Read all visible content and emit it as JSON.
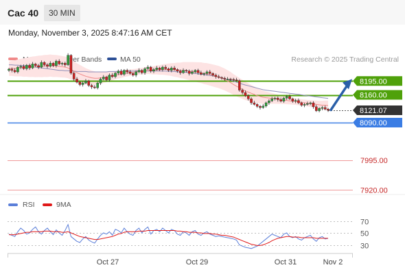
{
  "header": {
    "instrument": "Cac 40",
    "timeframe": "30 MIN"
  },
  "datetime": "Monday, November 3, 2025 8:47:16 AM CET",
  "legend": {
    "ma20": "MA 20 + Bollinger Bands",
    "ma50": "MA 50",
    "credit": "Research © 2025 Trading Central",
    "rsi": "RSI",
    "rsi_ma": "9MA"
  },
  "colors": {
    "candle_up": "#2e9e3a",
    "candle_down": "#cc1f1f",
    "ma20": "#f08a8a",
    "bollinger_fill": "#fde3e3",
    "ma50": "#8e8eb8",
    "resistance": "#4fa10a",
    "pivot": "#3b7de4",
    "support": "#ef9a9a",
    "arrow": "#2a5fa8",
    "rsi": "#5b7fd9",
    "rsi_ma": "#e01919"
  },
  "chart_data": [
    {
      "type": "candlestick",
      "price_levels": [
        {
          "label": "8195.00",
          "value": 8195.0,
          "role": "resistance"
        },
        {
          "label": "8160.00",
          "value": 8160.0,
          "role": "resistance"
        },
        {
          "label": "8121.07",
          "value": 8121.07,
          "role": "last"
        },
        {
          "label": "8090.00",
          "value": 8090.0,
          "role": "pivot"
        },
        {
          "label": "7995.00",
          "value": 7995.0,
          "role": "support"
        },
        {
          "label": "7920.00",
          "value": 7920.0,
          "role": "support"
        }
      ],
      "x_ticks": [
        "Oct 27",
        "Oct 29",
        "Oct 31",
        "Nov 2"
      ],
      "close": [
        8225,
        8222,
        8218,
        8230,
        8232,
        8226,
        8235,
        8228,
        8238,
        8234,
        8230,
        8242,
        8236,
        8232,
        8240,
        8234,
        8245,
        8238,
        8240,
        8236,
        8260,
        8215,
        8200,
        8192,
        8186,
        8190,
        8195,
        8184,
        8180,
        8178,
        8190,
        8200,
        8205,
        8198,
        8210,
        8206,
        8215,
        8220,
        8212,
        8222,
        8218,
        8214,
        8210,
        8218,
        8222,
        8216,
        8226,
        8230,
        8220,
        8224,
        8228,
        8224,
        8230,
        8226,
        8222,
        8228,
        8224,
        8220,
        8216,
        8222,
        8220,
        8214,
        8218,
        8222,
        8216,
        8212,
        8214,
        8218,
        8214,
        8210,
        8206,
        8204,
        8202,
        8200,
        8200,
        8199,
        8198,
        8196,
        8172,
        8166,
        8158,
        8150,
        8140,
        8136,
        8131,
        8128,
        8132,
        8140,
        8145,
        8150,
        8152,
        8148,
        8144,
        8152,
        8156,
        8150,
        8144,
        8146,
        8140,
        8134,
        8136,
        8138,
        8140,
        8130,
        8120,
        8126,
        8128,
        8124,
        8121
      ],
      "ma20": [
        8226,
        8227,
        8227,
        8228,
        8229,
        8229,
        8230,
        8230,
        8231,
        8231,
        8232,
        8232,
        8233,
        8233,
        8234,
        8233,
        8233,
        8232,
        8231,
        8230,
        8228,
        8224,
        8220,
        8216,
        8213,
        8210,
        8207,
        8205,
        8203,
        8202,
        8202,
        8203,
        8204,
        8205,
        8207,
        8208,
        8210,
        8211,
        8212,
        8214,
        8215,
        8216,
        8217,
        8218,
        8219,
        8220,
        8221,
        8222,
        8222,
        8222,
        8223,
        8223,
        8224,
        8224,
        8224,
        8224,
        8223,
        8223,
        8222,
        8222,
        8221,
        8220,
        8219,
        8218,
        8217,
        8216,
        8214,
        8213,
        8211,
        8209,
        8207,
        8205,
        8202,
        8199,
        8195,
        8191,
        8186,
        8182,
        8178,
        8174,
        8170,
        8167,
        8164,
        8161,
        8158,
        8156,
        8154,
        8153,
        8152,
        8151,
        8150,
        8149,
        8148,
        8147,
        8146,
        8145,
        8144,
        8143,
        8142,
        8141,
        8140,
        8139,
        8138,
        8137,
        8136,
        8135,
        8134,
        8134,
        8133
      ],
      "ma50": [
        8236,
        8236,
        8235,
        8235,
        8234,
        8234,
        8233,
        8232,
        8231,
        8230,
        8229,
        8228,
        8227,
        8226,
        8225,
        8224,
        8223,
        8222,
        8222,
        8221,
        8221,
        8220,
        8220,
        8219,
        8219,
        8219,
        8219,
        8218,
        8218,
        8218,
        8218,
        8218,
        8218,
        8218,
        8219,
        8219,
        8219,
        8219,
        8219,
        8220,
        8220,
        8220,
        8220,
        8220,
        8220,
        8220,
        8220,
        8220,
        8220,
        8220,
        8220,
        8220,
        8220,
        8220,
        8219,
        8219,
        8219,
        8218,
        8218,
        8217,
        8217,
        8216,
        8215,
        8214,
        8213,
        8212,
        8211,
        8210,
        8209,
        8208,
        8207,
        8205,
        8203,
        8201,
        8199,
        8197,
        8195,
        8192,
        8190,
        8187,
        8185,
        8183,
        8181,
        8179,
        8177,
        8175,
        8173,
        8172,
        8171,
        8170,
        8169,
        8168,
        8167,
        8166,
        8165,
        8164,
        8163,
        8162,
        8161,
        8160,
        8159,
        8158,
        8157,
        8156,
        8155,
        8154,
        8153,
        8152,
        8151
      ],
      "y_range": [
        7905,
        8275
      ]
    },
    {
      "type": "line",
      "name": "RSI",
      "y_ticks": [
        70,
        50,
        30
      ],
      "y_range": [
        18,
        82
      ],
      "rsi": [
        48,
        46,
        44,
        52,
        58,
        54,
        48,
        50,
        56,
        60,
        52,
        48,
        54,
        58,
        52,
        47,
        55,
        50,
        46,
        54,
        64,
        44,
        40,
        36,
        34,
        40,
        44,
        38,
        35,
        33,
        40,
        46,
        50,
        48,
        52,
        46,
        56,
        54,
        50,
        58,
        52,
        48,
        46,
        54,
        58,
        50,
        56,
        60,
        48,
        54,
        56,
        52,
        58,
        54,
        50,
        56,
        54,
        48,
        46,
        52,
        50,
        46,
        52,
        54,
        48,
        46,
        50,
        52,
        48,
        46,
        44,
        45,
        44,
        43,
        42,
        41,
        40,
        38,
        30,
        28,
        26,
        25,
        24,
        26,
        28,
        32,
        36,
        40,
        44,
        48,
        46,
        44,
        42,
        48,
        50,
        44,
        42,
        44,
        40,
        38,
        42,
        44,
        46,
        40,
        36,
        42,
        44,
        40,
        41
      ],
      "rsi_ma": [
        47,
        47,
        47,
        48,
        49,
        50,
        51,
        51,
        52,
        52,
        52,
        52,
        53,
        53,
        53,
        52,
        52,
        52,
        51,
        51,
        52,
        50,
        48,
        46,
        44,
        43,
        42,
        41,
        40,
        39,
        39,
        40,
        41,
        42,
        43,
        44,
        46,
        48,
        49,
        51,
        52,
        52,
        52,
        52,
        53,
        53,
        53,
        54,
        54,
        54,
        54,
        54,
        54,
        54,
        54,
        54,
        54,
        53,
        53,
        52,
        52,
        51,
        51,
        51,
        50,
        50,
        49,
        49,
        49,
        48,
        48,
        47,
        46,
        46,
        45,
        44,
        43,
        41,
        39,
        37,
        35,
        33,
        31,
        30,
        29,
        29,
        30,
        32,
        34,
        37,
        39,
        41,
        42,
        43,
        44,
        44,
        43,
        43,
        43,
        42,
        42,
        42,
        42,
        42,
        41,
        41,
        41,
        41,
        41
      ],
      "x_ticks": [
        "Oct 27",
        "Oct 29",
        "Oct 31",
        "Nov 2"
      ]
    }
  ]
}
